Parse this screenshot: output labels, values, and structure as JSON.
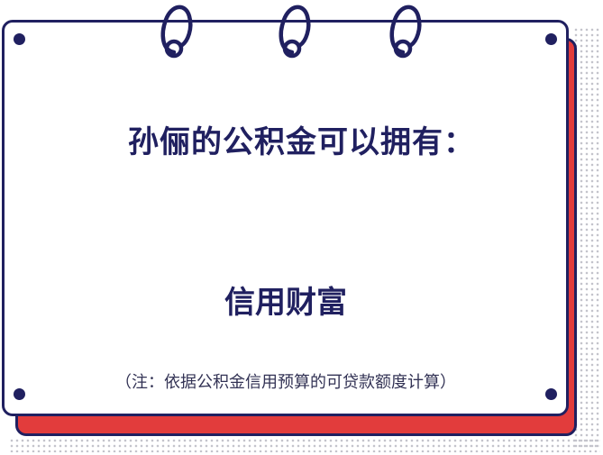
{
  "card": {
    "title": "孙俪的公积金可以拥有：",
    "value": "信用财富",
    "note": "（注：依据公积金信用预算的可贷款额度计算）"
  },
  "colors": {
    "navy": "#202060",
    "red": "#e23c3c",
    "background": "#ffffff",
    "dots": "#c4c4cc"
  },
  "icons": [
    "binder-ring-icon",
    "card-hole-icon"
  ]
}
